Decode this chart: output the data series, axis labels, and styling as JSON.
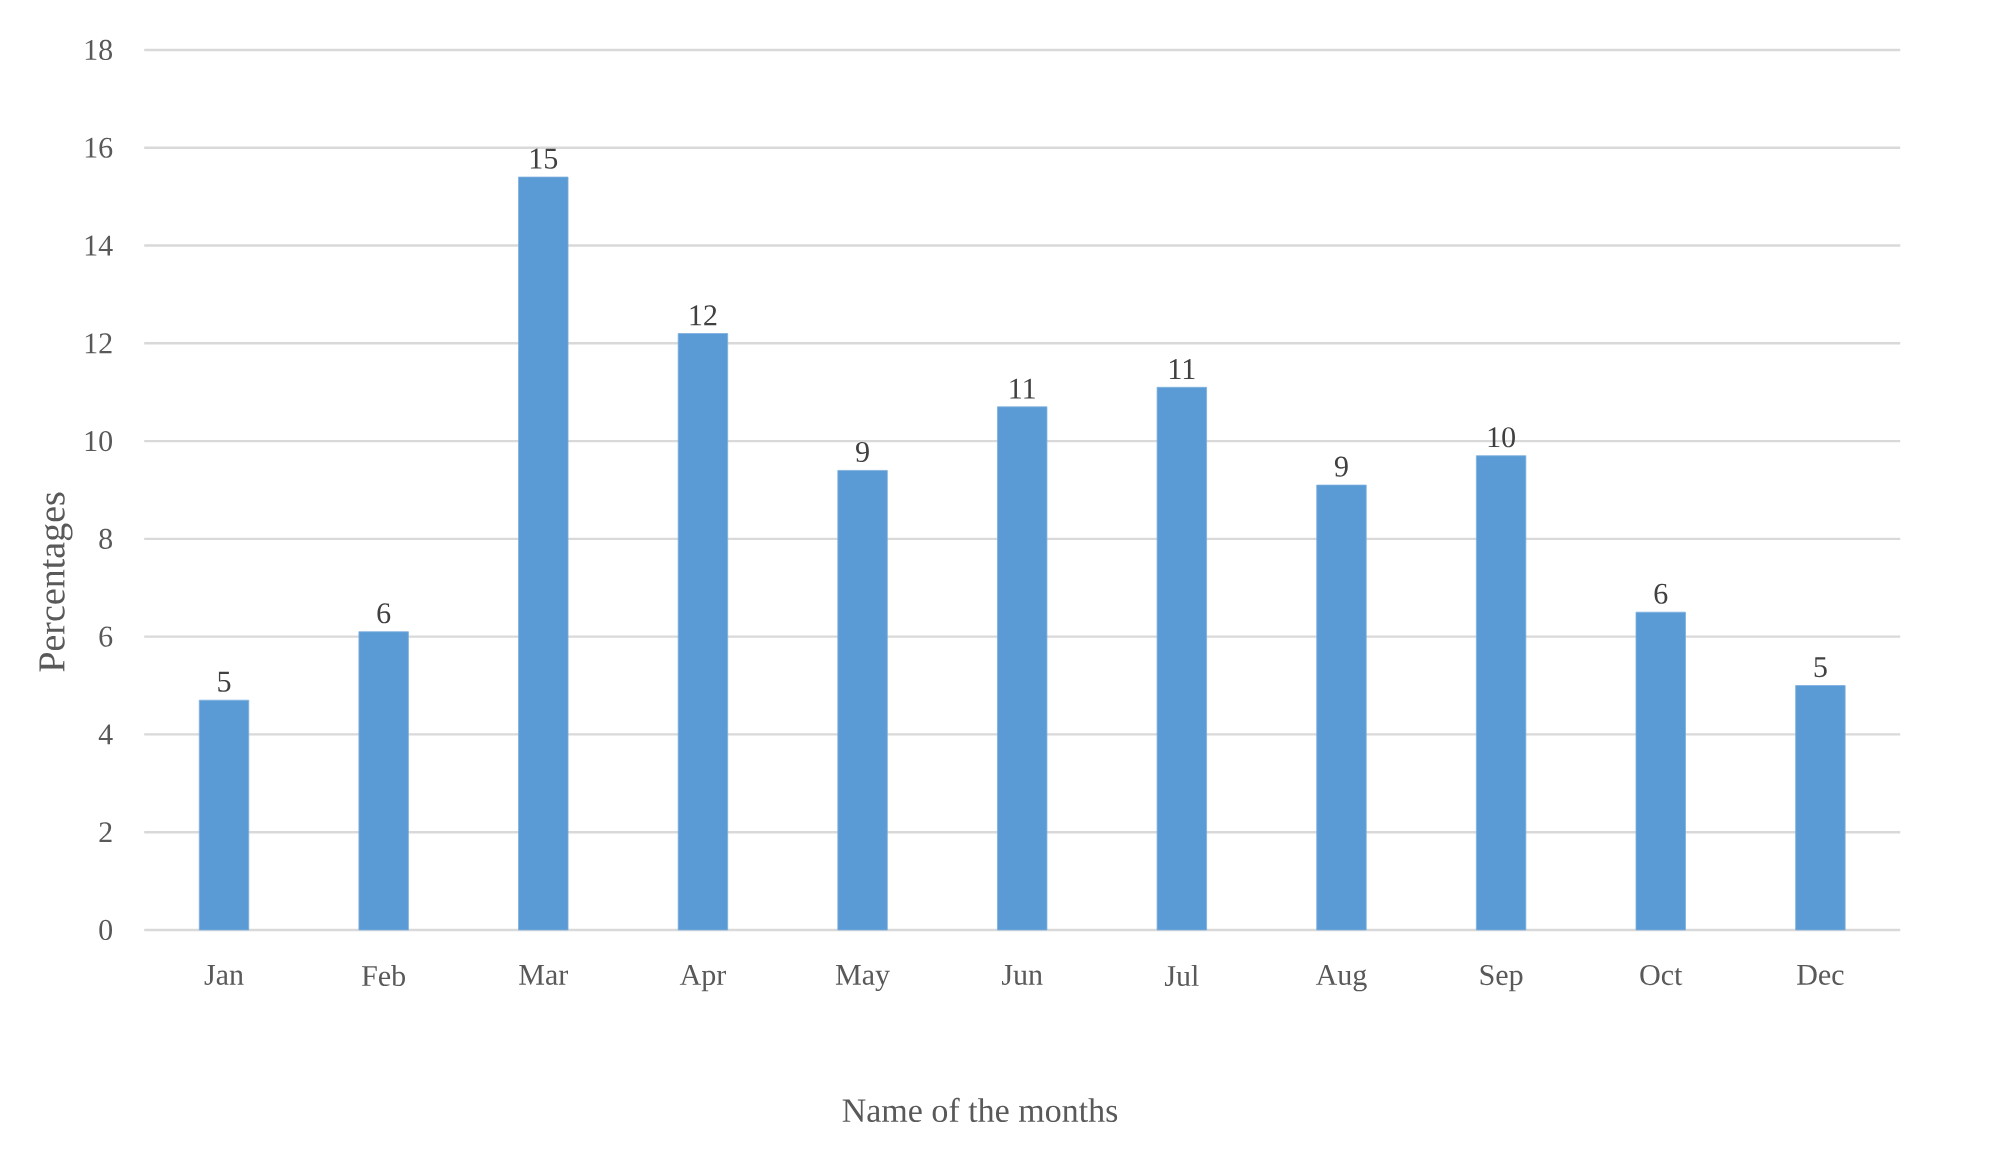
{
  "chart_data": {
    "type": "bar",
    "xlabel": "Name of the months",
    "ylabel": "Percentages",
    "categories": [
      "Jan",
      "Feb",
      "Mar",
      "Apr",
      "May",
      "Jun",
      "Jul",
      "Aug",
      "Sep",
      "Oct",
      "Dec"
    ],
    "values": [
      4.7,
      6.1,
      15.4,
      12.2,
      9.4,
      10.7,
      11.1,
      9.1,
      9.7,
      6.5,
      5.0
    ],
    "value_labels": [
      "5",
      "6",
      "15",
      "12",
      "9",
      "11",
      "11",
      "9",
      "10",
      "6",
      "5"
    ],
    "color": "#5b9bd5",
    "ylim": [
      0,
      18
    ],
    "yticks": [
      0,
      2,
      4,
      6,
      8,
      10,
      12,
      14,
      16,
      18
    ],
    "grid": "y"
  }
}
